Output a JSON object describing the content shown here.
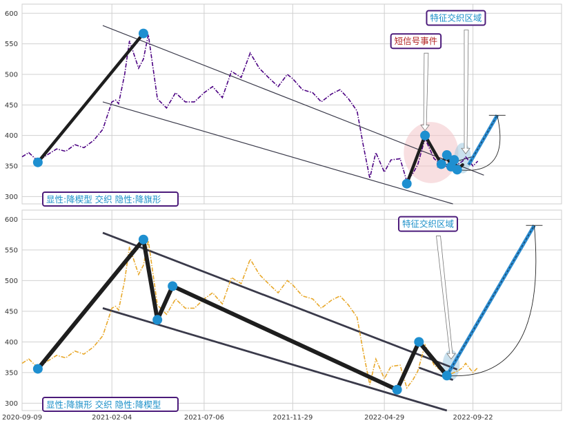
{
  "chart_data": [
    {
      "type": "line",
      "panel": "top",
      "x_range": [
        "2020-09-09",
        "2023-02-15"
      ],
      "ylim": [
        288,
        615
      ],
      "yticks": [
        300,
        350,
        400,
        450,
        500,
        550,
        600
      ],
      "grid": true,
      "line_color": "#4b0082",
      "line_style": "dash-dot",
      "price": {
        "x": [
          "2020-09-09",
          "2020-09-20",
          "2020-10-05",
          "2020-10-20",
          "2020-11-05",
          "2020-11-20",
          "2020-12-05",
          "2020-12-20",
          "2021-01-05",
          "2021-01-20",
          "2021-02-04",
          "2021-02-10",
          "2021-02-15",
          "2021-02-25",
          "2021-03-05",
          "2021-03-20",
          "2021-03-28",
          "2021-04-05",
          "2021-04-20",
          "2021-05-05",
          "2021-05-20",
          "2021-06-05",
          "2021-06-20",
          "2021-07-06",
          "2021-07-20",
          "2021-08-05",
          "2021-08-20",
          "2021-09-05",
          "2021-09-20",
          "2021-10-05",
          "2021-10-20",
          "2021-11-05",
          "2021-11-20",
          "2021-11-29",
          "2021-12-15",
          "2022-01-01",
          "2022-01-15",
          "2022-02-01",
          "2022-02-15",
          "2022-03-01",
          "2022-03-15",
          "2022-03-25",
          "2022-04-05",
          "2022-04-15",
          "2022-04-29",
          "2022-05-10",
          "2022-05-25",
          "2022-06-05",
          "2022-06-15",
          "2022-06-23",
          "2022-07-05",
          "2022-07-20",
          "2022-08-05",
          "2022-08-17",
          "2022-08-27",
          "2022-09-05",
          "2022-09-10",
          "2022-09-22",
          "2022-09-30"
        ],
        "y": [
          365,
          372,
          358,
          368,
          378,
          374,
          385,
          380,
          392,
          410,
          455,
          458,
          452,
          500,
          555,
          510,
          525,
          565,
          460,
          445,
          470,
          455,
          455,
          470,
          480,
          462,
          505,
          495,
          535,
          510,
          495,
          480,
          500,
          493,
          475,
          470,
          455,
          468,
          475,
          460,
          440,
          385,
          330,
          372,
          340,
          360,
          362,
          325,
          338,
          352,
          395,
          362,
          350,
          348,
          352,
          358,
          365,
          350,
          358
        ]
      },
      "pattern_lines": [
        {
          "x": [
            "2020-10-05",
            "2021-03-28"
          ],
          "y": [
            356,
            567
          ]
        },
        {
          "x": [
            "2022-06-05",
            "2022-07-05"
          ],
          "y": [
            321,
            400
          ]
        },
        {
          "x": [
            "2022-07-05",
            "2022-08-01"
          ],
          "y": [
            400,
            353
          ]
        },
        {
          "x": [
            "2022-08-01",
            "2022-08-10"
          ],
          "y": [
            353,
            368
          ]
        },
        {
          "x": [
            "2022-08-10",
            "2022-08-17"
          ],
          "y": [
            368,
            349
          ]
        },
        {
          "x": [
            "2022-08-17",
            "2022-08-22"
          ],
          "y": [
            349,
            360
          ]
        },
        {
          "x": [
            "2022-08-22",
            "2022-08-27"
          ],
          "y": [
            360,
            344
          ]
        },
        {
          "x": [
            "2022-08-27",
            "2022-09-05"
          ],
          "y": [
            344,
            352
          ]
        }
      ],
      "channel_lines": [
        {
          "x": [
            "2021-01-20",
            "2022-10-10"
          ],
          "y": [
            580,
            335
          ]
        },
        {
          "x": [
            "2021-01-20",
            "2022-08-20"
          ],
          "y": [
            455,
            288
          ]
        },
        {
          "x": [
            "2022-07-25",
            "2022-09-20"
          ],
          "y": [
            348,
            365
          ]
        }
      ],
      "pivots": [
        {
          "x": "2020-10-05",
          "y": 356
        },
        {
          "x": "2021-03-28",
          "y": 567
        },
        {
          "x": "2022-06-05",
          "y": 321
        },
        {
          "x": "2022-07-05",
          "y": 400
        },
        {
          "x": "2022-08-01",
          "y": 353
        },
        {
          "x": "2022-08-10",
          "y": 368
        },
        {
          "x": "2022-08-17",
          "y": 349
        },
        {
          "x": "2022-08-22",
          "y": 360
        },
        {
          "x": "2022-08-27",
          "y": 344
        }
      ],
      "projection": {
        "x": [
          "2022-09-15",
          "2022-11-01"
        ],
        "y": [
          352,
          433
        ]
      },
      "event_zones": [
        {
          "x": "2022-07-15",
          "y": 372,
          "rx_days": 45,
          "ry": 50,
          "color": "#f2c4c8"
        },
        {
          "x": "2022-09-05",
          "y": 363,
          "rx_days": 14,
          "ry": 25,
          "color": "#9ec8e0"
        }
      ],
      "callouts": [
        {
          "label": "短信号事件",
          "color": "#b22222",
          "text_x": "2022-06-20",
          "text_y": 555,
          "arrow_x": "2022-07-05",
          "arrow_y": 408
        },
        {
          "label": "特征交织区域",
          "color": "#1a8fc8",
          "text_x": "2022-08-25",
          "text_y": 593,
          "arrow_x": "2022-09-10",
          "arrow_y": 370
        }
      ],
      "annotation": "显性:降楔型 交织 隐性:降旗形",
      "annotation_color": "#1a8fc8"
    },
    {
      "type": "line",
      "panel": "bottom",
      "x_range": [
        "2020-09-09",
        "2023-02-15"
      ],
      "ylim": [
        288,
        615
      ],
      "yticks": [
        300,
        350,
        400,
        450,
        500,
        550,
        600
      ],
      "xticks": [
        "2020-09-09",
        "2021-02-04",
        "2021-07-06",
        "2021-11-29",
        "2022-04-29",
        "2022-09-22"
      ],
      "grid": true,
      "line_color": "#e8a82a",
      "line_style": "dash-dot",
      "price": {
        "x": [
          "2020-09-09",
          "2020-09-20",
          "2020-10-05",
          "2020-10-20",
          "2020-11-05",
          "2020-11-20",
          "2020-12-05",
          "2020-12-20",
          "2021-01-05",
          "2021-01-20",
          "2021-02-04",
          "2021-02-10",
          "2021-02-15",
          "2021-02-25",
          "2021-03-05",
          "2021-03-20",
          "2021-03-28",
          "2021-04-05",
          "2021-04-20",
          "2021-05-05",
          "2021-05-20",
          "2021-06-05",
          "2021-06-20",
          "2021-07-06",
          "2021-07-20",
          "2021-08-05",
          "2021-08-20",
          "2021-09-05",
          "2021-09-20",
          "2021-10-05",
          "2021-10-20",
          "2021-11-05",
          "2021-11-20",
          "2021-11-29",
          "2021-12-15",
          "2022-01-01",
          "2022-01-15",
          "2022-02-01",
          "2022-02-15",
          "2022-03-01",
          "2022-03-15",
          "2022-03-25",
          "2022-04-05",
          "2022-04-15",
          "2022-04-29",
          "2022-05-10",
          "2022-05-25",
          "2022-06-05",
          "2022-06-15",
          "2022-06-23",
          "2022-07-05",
          "2022-07-20",
          "2022-08-05",
          "2022-08-17",
          "2022-08-27",
          "2022-09-05",
          "2022-09-10",
          "2022-09-22",
          "2022-09-30"
        ],
        "y": [
          365,
          372,
          358,
          368,
          378,
          374,
          385,
          380,
          392,
          410,
          455,
          458,
          452,
          500,
          555,
          510,
          525,
          565,
          460,
          445,
          470,
          455,
          455,
          470,
          480,
          462,
          505,
          495,
          535,
          510,
          495,
          480,
          500,
          493,
          475,
          470,
          455,
          468,
          475,
          460,
          440,
          385,
          330,
          372,
          340,
          360,
          362,
          325,
          338,
          352,
          395,
          362,
          350,
          348,
          352,
          358,
          365,
          350,
          358
        ]
      },
      "pattern_lines": [
        {
          "x": [
            "2020-10-05",
            "2021-03-28"
          ],
          "y": [
            356,
            567
          ]
        },
        {
          "x": [
            "2021-03-28",
            "2021-04-20"
          ],
          "y": [
            567,
            436
          ]
        },
        {
          "x": [
            "2021-04-20",
            "2021-05-15"
          ],
          "y": [
            436,
            491
          ]
        },
        {
          "x": [
            "2021-05-15",
            "2022-05-20"
          ],
          "y": [
            491,
            322
          ]
        },
        {
          "x": [
            "2022-05-20",
            "2022-06-25"
          ],
          "y": [
            322,
            400
          ]
        },
        {
          "x": [
            "2022-06-25",
            "2022-08-10"
          ],
          "y": [
            400,
            345
          ]
        }
      ],
      "channel_lines": [
        {
          "x": [
            "2021-01-20",
            "2022-08-27"
          ],
          "y": [
            578,
            355
          ]
        },
        {
          "x": [
            "2021-01-20",
            "2022-08-10"
          ],
          "y": [
            455,
            288
          ]
        },
        {
          "x": [
            "2022-06-25",
            "2022-08-20"
          ],
          "y": [
            358,
            338
          ]
        }
      ],
      "pivots": [
        {
          "x": "2020-10-05",
          "y": 356
        },
        {
          "x": "2021-03-28",
          "y": 567
        },
        {
          "x": "2021-04-20",
          "y": 436
        },
        {
          "x": "2021-05-15",
          "y": 491
        },
        {
          "x": "2022-05-20",
          "y": 322
        },
        {
          "x": "2022-06-25",
          "y": 400
        },
        {
          "x": "2022-08-10",
          "y": 345
        }
      ],
      "projection": {
        "x": [
          "2022-08-10",
          "2023-01-01"
        ],
        "y": [
          345,
          590
        ]
      },
      "event_zones": [
        {
          "x": "2022-08-17",
          "y": 362,
          "rx_days": 14,
          "ry": 25,
          "color": "#9ec8e0"
        }
      ],
      "callouts": [
        {
          "label": "特征交织区域",
          "color": "#1a8fc8",
          "text_x": "2022-07-10",
          "text_y": 593,
          "arrow_x": "2022-08-17",
          "arrow_y": 372
        }
      ],
      "annotation": "显性:降旗形 交织 隐性:降楔型",
      "annotation_color": "#1a8fc8"
    }
  ]
}
